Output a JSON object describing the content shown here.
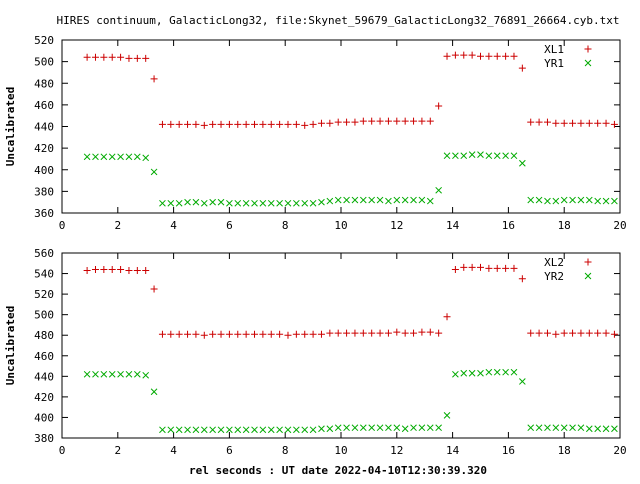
{
  "chart_data": [
    {
      "type": "scatter",
      "title": "HIRES continuum, GalacticLong32, file:Skynet_59679_GalacticLong32_76891_26664.cyb.txt",
      "xlabel": "",
      "ylabel": "Uncalibrated",
      "xlim": [
        0,
        20
      ],
      "ylim": [
        360,
        520
      ],
      "xticks": [
        0,
        2,
        4,
        6,
        8,
        10,
        12,
        14,
        16,
        18,
        20
      ],
      "yticks": [
        360,
        380,
        400,
        420,
        440,
        460,
        480,
        500,
        520
      ],
      "grid": false,
      "legend": "top-right",
      "x": [
        0.9,
        1.2,
        1.5,
        1.8,
        2.1,
        2.4,
        2.7,
        3.0,
        3.3,
        3.6,
        3.9,
        4.2,
        4.5,
        4.8,
        5.1,
        5.4,
        5.7,
        6.0,
        6.3,
        6.6,
        6.9,
        7.2,
        7.5,
        7.8,
        8.1,
        8.4,
        8.7,
        9.0,
        9.3,
        9.6,
        9.9,
        10.2,
        10.5,
        10.8,
        11.1,
        11.4,
        11.7,
        12.0,
        12.3,
        12.6,
        12.9,
        13.2,
        13.5,
        13.8,
        14.1,
        14.4,
        14.7,
        15.0,
        15.3,
        15.6,
        15.9,
        16.2,
        16.5,
        16.8,
        17.1,
        17.4,
        17.7,
        18.0,
        18.3,
        18.6,
        18.9,
        19.2,
        19.5,
        19.8
      ],
      "series": [
        {
          "name": "XL1",
          "marker": "plus",
          "color": "#cc0000",
          "values": [
            504,
            504,
            504,
            504,
            504,
            503,
            503,
            503,
            484,
            442,
            442,
            442,
            442,
            442,
            441,
            442,
            442,
            442,
            442,
            442,
            442,
            442,
            442,
            442,
            442,
            442,
            441,
            442,
            443,
            443,
            444,
            444,
            444,
            445,
            445,
            445,
            445,
            445,
            445,
            445,
            445,
            445,
            459,
            505,
            506,
            506,
            506,
            505,
            505,
            505,
            505,
            505,
            494,
            444,
            444,
            444,
            443,
            443,
            443,
            443,
            443,
            443,
            443,
            442
          ]
        },
        {
          "name": "YR1",
          "marker": "cross",
          "color": "#00aa00",
          "values": [
            412,
            412,
            412,
            412,
            412,
            412,
            412,
            411,
            398,
            369,
            369,
            369,
            370,
            370,
            369,
            370,
            370,
            369,
            369,
            369,
            369,
            369,
            369,
            369,
            369,
            369,
            369,
            369,
            370,
            371,
            372,
            372,
            372,
            372,
            372,
            372,
            371,
            372,
            372,
            372,
            372,
            371,
            381,
            413,
            413,
            413,
            414,
            414,
            413,
            413,
            413,
            413,
            406,
            372,
            372,
            371,
            371,
            372,
            372,
            372,
            372,
            371,
            371,
            371
          ]
        }
      ]
    },
    {
      "type": "scatter",
      "title": "",
      "xlabel": "rel seconds : UT date 2022-04-10T12:30:39.320",
      "ylabel": "Uncalibrated",
      "xlim": [
        0,
        20
      ],
      "ylim": [
        380,
        560
      ],
      "xticks": [
        0,
        2,
        4,
        6,
        8,
        10,
        12,
        14,
        16,
        18,
        20
      ],
      "yticks": [
        380,
        400,
        420,
        440,
        460,
        480,
        500,
        520,
        540,
        560
      ],
      "grid": false,
      "legend": "top-right",
      "x": [
        0.9,
        1.2,
        1.5,
        1.8,
        2.1,
        2.4,
        2.7,
        3.0,
        3.3,
        3.6,
        3.9,
        4.2,
        4.5,
        4.8,
        5.1,
        5.4,
        5.7,
        6.0,
        6.3,
        6.6,
        6.9,
        7.2,
        7.5,
        7.8,
        8.1,
        8.4,
        8.7,
        9.0,
        9.3,
        9.6,
        9.9,
        10.2,
        10.5,
        10.8,
        11.1,
        11.4,
        11.7,
        12.0,
        12.3,
        12.6,
        12.9,
        13.2,
        13.5,
        13.8,
        14.1,
        14.4,
        14.7,
        15.0,
        15.3,
        15.6,
        15.9,
        16.2,
        16.5,
        16.8,
        17.1,
        17.4,
        17.7,
        18.0,
        18.3,
        18.6,
        18.9,
        19.2,
        19.5,
        19.8
      ],
      "series": [
        {
          "name": "XL2",
          "marker": "plus",
          "color": "#cc0000",
          "values": [
            543,
            544,
            544,
            544,
            544,
            543,
            543,
            543,
            525,
            481,
            481,
            481,
            481,
            481,
            480,
            481,
            481,
            481,
            481,
            481,
            481,
            481,
            481,
            481,
            480,
            481,
            481,
            481,
            481,
            482,
            482,
            482,
            482,
            482,
            482,
            482,
            482,
            483,
            482,
            482,
            483,
            483,
            482,
            498,
            544,
            546,
            546,
            546,
            545,
            545,
            545,
            545,
            535,
            482,
            482,
            482,
            481,
            482,
            482,
            482,
            482,
            482,
            482,
            481
          ]
        },
        {
          "name": "YR2",
          "marker": "cross",
          "color": "#00aa00",
          "values": [
            442,
            442,
            442,
            442,
            442,
            442,
            442,
            441,
            425,
            388,
            388,
            388,
            388,
            388,
            388,
            388,
            388,
            388,
            388,
            388,
            388,
            388,
            388,
            388,
            388,
            388,
            388,
            388,
            389,
            389,
            390,
            390,
            390,
            390,
            390,
            390,
            390,
            390,
            389,
            390,
            390,
            390,
            390,
            402,
            442,
            443,
            443,
            443,
            444,
            444,
            444,
            444,
            435,
            390,
            390,
            390,
            390,
            390,
            390,
            390,
            389,
            389,
            389,
            389
          ]
        }
      ]
    }
  ]
}
